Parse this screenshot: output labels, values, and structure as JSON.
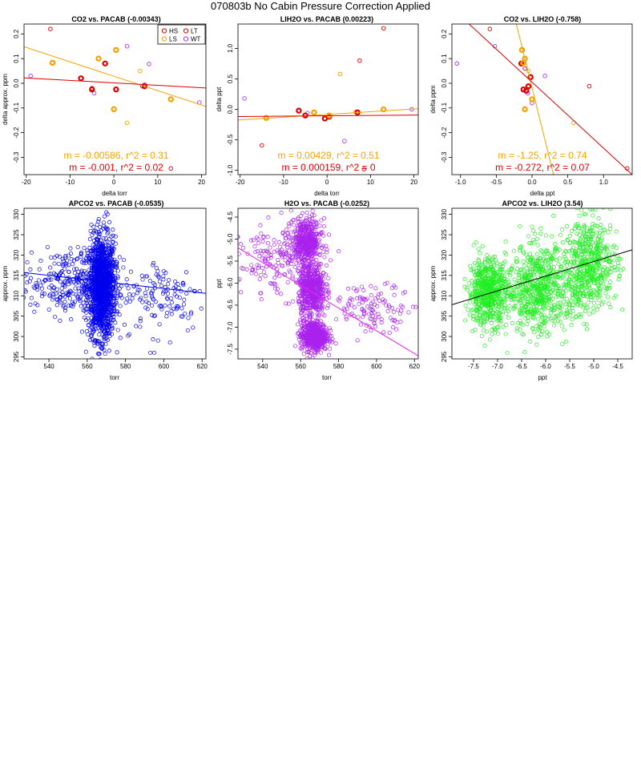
{
  "page_title": "070803b   No Cabin Pressure Correction Applied",
  "chart_data": [
    {
      "type": "scatter",
      "title": "CO2 vs. PACAB (-0.00343)",
      "xlabel": "delta torr",
      "ylabel": "delta approx. ppm",
      "xlim": [
        -20.5,
        21
      ],
      "ylim": [
        -0.37,
        0.24
      ],
      "xticks": [
        -20,
        -10,
        0,
        10,
        20
      ],
      "xtick_labels": [
        "-20",
        "-10",
        "0",
        "10",
        "20"
      ],
      "yticks": [
        -0.3,
        -0.2,
        -0.1,
        0.0,
        0.1,
        0.2
      ],
      "ytick_labels": [
        "-0.3",
        "-0.2",
        "-0.1",
        "0.0",
        "0.1",
        "0.2"
      ],
      "legend": {
        "position": "top-right",
        "items": [
          {
            "label": "HS",
            "color": "#dd0000"
          },
          {
            "label": "LT",
            "color": "#dd0000"
          },
          {
            "label": "LS",
            "color": "#f5a200"
          },
          {
            "label": "WT",
            "color": "#aa33ff"
          }
        ]
      },
      "series": [
        {
          "color": "#dd0000",
          "points": [
            [
              -14.5,
              0.22
            ],
            [
              -7.5,
              0.02
            ],
            [
              -5,
              -0.02
            ],
            [
              -2,
              0.08
            ],
            [
              0.5,
              -0.025
            ],
            [
              7,
              -0.012
            ],
            [
              6.5,
              -0.012
            ],
            [
              13,
              -0.345
            ]
          ]
        },
        {
          "color": "#f5a200",
          "points": [
            [
              -14,
              0.083
            ],
            [
              -3.5,
              0.1
            ],
            [
              0.5,
              0.135
            ],
            [
              0,
              -0.105
            ],
            [
              3,
              -0.16
            ],
            [
              13,
              -0.065
            ],
            [
              6,
              0.05
            ]
          ]
        },
        {
          "color": "#aa33ff",
          "points": [
            [
              -19,
              0.03
            ],
            [
              -4.5,
              -0.04
            ],
            [
              3,
              0.15
            ],
            [
              8,
              0.078
            ],
            [
              19.5,
              -0.078
            ],
            [
              7,
              -0.005
            ]
          ]
        }
      ],
      "thick_points": [
        [
          -7.5,
          0.02
        ],
        [
          -5,
          -0.025
        ],
        [
          -2,
          0.08
        ],
        [
          0.5,
          -0.025
        ],
        [
          7,
          -0.012
        ],
        [
          -14,
          0.083
        ],
        [
          -3.5,
          0.1
        ],
        [
          0.5,
          0.135
        ],
        [
          0,
          -0.105
        ],
        [
          13,
          -0.065
        ]
      ],
      "fit_lines": [
        {
          "color": "#f5a200",
          "x": [
            -20.5,
            21
          ],
          "y": [
            0.148,
            -0.094
          ]
        },
        {
          "color": "#dd0000",
          "x": [
            -20.5,
            21
          ],
          "y": [
            0.022,
            -0.019
          ]
        }
      ],
      "annotations": [
        {
          "text": "m = -0.00586, r^2 = 0.31",
          "color": "#f5a200"
        },
        {
          "text": "m = -0.001, r^2 = 0.02",
          "color": "#dd0000"
        }
      ]
    },
    {
      "type": "scatter",
      "title": "LIH2O vs. PACAB (0.00223)",
      "xlabel": "delta torr",
      "ylabel": "delta ppt",
      "xlim": [
        -20.5,
        21
      ],
      "ylim": [
        -1.07,
        1.4
      ],
      "xticks": [
        -20,
        -10,
        0,
        10,
        20
      ],
      "xtick_labels": [
        "-20",
        "-10",
        "0",
        "10",
        "20"
      ],
      "yticks": [
        -1.0,
        -0.5,
        0.0,
        0.5,
        1.0
      ],
      "ytick_labels": [
        "-1.0",
        "-0.5",
        "0.0",
        "0.5",
        "1.0"
      ],
      "series": [
        {
          "color": "#dd0000",
          "points": [
            [
              -15,
              -0.59
            ],
            [
              -6.5,
              -0.02
            ],
            [
              -5,
              -0.1
            ],
            [
              -0.5,
              -0.15
            ],
            [
              0.5,
              -0.12
            ],
            [
              7,
              -0.05
            ],
            [
              7.5,
              0.8
            ],
            [
              13,
              1.33
            ],
            [
              8.5,
              -0.98
            ]
          ]
        },
        {
          "color": "#f5a200",
          "points": [
            [
              -14,
              -0.14
            ],
            [
              -3,
              -0.05
            ],
            [
              0.5,
              -0.1
            ],
            [
              3,
              0.58
            ],
            [
              13,
              0.0
            ],
            [
              6.5,
              -0.04
            ]
          ]
        },
        {
          "color": "#aa33ff",
          "points": [
            [
              -19,
              0.18
            ],
            [
              -4.5,
              -0.06
            ],
            [
              4,
              -0.52
            ],
            [
              19.5,
              0.0
            ]
          ]
        }
      ],
      "thick_points": [
        [
          -6.5,
          -0.02
        ],
        [
          -5,
          -0.1
        ],
        [
          -0.5,
          -0.15
        ],
        [
          0.5,
          -0.12
        ],
        [
          7,
          -0.05
        ],
        [
          -14,
          -0.14
        ],
        [
          -3,
          -0.05
        ],
        [
          0.5,
          -0.1
        ],
        [
          13,
          0.0
        ]
      ],
      "fit_lines": [
        {
          "color": "#f5a200",
          "x": [
            -20.5,
            21
          ],
          "y": [
            -0.175,
            0.012
          ]
        },
        {
          "color": "#dd0000",
          "x": [
            -20.5,
            21
          ],
          "y": [
            -0.117,
            -0.093
          ]
        }
      ],
      "annotations": [
        {
          "text": "m = 0.00429, r^2 = 0.51",
          "color": "#f5a200"
        },
        {
          "text": "m = 0.000159, r^2 = 0",
          "color": "#dd0000"
        }
      ]
    },
    {
      "type": "scatter",
      "title": "CO2 vs. LIH2O (-0.758)",
      "xlabel": "delta ppt",
      "ylabel": "delta ppm",
      "xlim": [
        -1.12,
        1.4
      ],
      "ylim": [
        -0.37,
        0.24
      ],
      "xticks": [
        -1.0,
        -0.5,
        0.0,
        0.5,
        1.0
      ],
      "xtick_labels": [
        "-1.0",
        "-0.5",
        "0.0",
        "0.5",
        "1.0"
      ],
      "yticks": [
        -0.3,
        -0.2,
        -0.1,
        0.0,
        0.1,
        0.2
      ],
      "ytick_labels": [
        "-0.3",
        "-0.2",
        "-0.1",
        "0.0",
        "0.1",
        "0.2"
      ],
      "series": [
        {
          "color": "#dd0000",
          "points": [
            [
              -0.59,
              0.22
            ],
            [
              -0.15,
              0.08
            ],
            [
              -0.12,
              -0.025
            ],
            [
              -0.08,
              -0.03
            ],
            [
              -0.05,
              -0.012
            ],
            [
              -0.02,
              0.025
            ],
            [
              -0.1,
              0.06
            ],
            [
              0.8,
              -0.012
            ],
            [
              1.33,
              -0.345
            ]
          ]
        },
        {
          "color": "#f5a200",
          "points": [
            [
              -0.14,
              0.135
            ],
            [
              -0.1,
              0.1
            ],
            [
              -0.12,
              0.083
            ],
            [
              -0.05,
              0.05
            ],
            [
              0.0,
              -0.065
            ],
            [
              -0.1,
              -0.105
            ],
            [
              0.58,
              -0.16
            ]
          ]
        },
        {
          "color": "#aa33ff",
          "points": [
            [
              -1.05,
              0.08
            ],
            [
              -0.52,
              0.15
            ],
            [
              0.18,
              0.03
            ],
            [
              0.0,
              -0.08
            ],
            [
              -0.06,
              -0.04
            ]
          ]
        }
      ],
      "thick_points": [
        [
          -0.15,
          0.08
        ],
        [
          -0.12,
          -0.025
        ],
        [
          -0.08,
          -0.03
        ],
        [
          -0.05,
          -0.012
        ],
        [
          -0.02,
          0.025
        ],
        [
          -0.14,
          0.135
        ],
        [
          -0.1,
          0.1
        ],
        [
          -0.12,
          0.083
        ],
        [
          0.0,
          -0.065
        ],
        [
          -0.1,
          -0.105
        ]
      ],
      "fit_lines": [
        {
          "color": "#f5a200",
          "x": [
            -0.22,
            0.3
          ],
          "y": [
            0.24,
            -0.37
          ]
        },
        {
          "color": "#dd0000",
          "x": [
            -0.88,
            1.4
          ],
          "y": [
            0.24,
            -0.37
          ]
        }
      ],
      "annotations": [
        {
          "text": "m = -1.25, r^2 = 0.74",
          "color": "#f5a200"
        },
        {
          "text": "m = -0.272, r^2 = 0.07",
          "color": "#dd0000"
        }
      ]
    },
    {
      "type": "scatter",
      "title": "APCO2 vs. PACAB (-0.0535)",
      "xlabel": "torr",
      "ylabel": "approx. ppm",
      "xlim": [
        527,
        622
      ],
      "ylim": [
        294.5,
        331.5
      ],
      "xticks": [
        540,
        560,
        580,
        600,
        620
      ],
      "xtick_labels": [
        "540",
        "560",
        "580",
        "600",
        "620"
      ],
      "yticks": [
        295,
        300,
        305,
        310,
        315,
        320,
        325,
        330
      ],
      "ytick_labels": [
        "295",
        "300",
        "305",
        "310",
        "315",
        "320",
        "325",
        "330"
      ],
      "color": "#0000ee",
      "clusters": [
        {
          "n": 1400,
          "cx": 567.5,
          "sx": 3.6,
          "cy": 312,
          "sy": 6.2
        },
        {
          "n": 280,
          "cx": 550,
          "sx": 12,
          "cy": 313.5,
          "sy": 4
        },
        {
          "n": 130,
          "cx": 600,
          "sx": 11,
          "cy": 310,
          "sy": 4.5
        }
      ],
      "extra_points": [
        [
          593,
          296
        ],
        [
          595,
          296
        ],
        [
          597,
          299
        ],
        [
          570,
          330.5
        ],
        [
          569,
          329.5
        ]
      ],
      "fit_lines": [
        {
          "color": "#0000ee",
          "x": [
            527,
            622
          ],
          "y": [
            315.7,
            310.6
          ]
        }
      ]
    },
    {
      "type": "scatter",
      "title": "H2O vs. PACAB (-0.0252)",
      "xlabel": "torr",
      "ylabel": "ppt",
      "xlim": [
        527,
        622
      ],
      "ylim": [
        -7.72,
        -4.3
      ],
      "xticks": [
        540,
        560,
        580,
        600,
        620
      ],
      "xtick_labels": [
        "540",
        "560",
        "580",
        "600",
        "620"
      ],
      "yticks": [
        -7.5,
        -7.0,
        -6.5,
        -6.0,
        -5.5,
        -5.0,
        -4.5
      ],
      "ytick_labels": [
        "-7.5",
        "-7.0",
        "-6.5",
        "-6.0",
        "-5.5",
        "-5.0",
        "-4.5"
      ],
      "color": "#aa22ee",
      "clusters": [
        {
          "n": 600,
          "cx": 567,
          "sx": 3.5,
          "cy": -7.2,
          "sy": 0.17
        },
        {
          "n": 550,
          "cx": 566,
          "sx": 3.5,
          "cy": -6.15,
          "sy": 0.3
        },
        {
          "n": 450,
          "cx": 563,
          "sx": 4,
          "cy": -5.05,
          "sy": 0.25
        },
        {
          "n": 180,
          "cx": 548,
          "sx": 10,
          "cy": -5.5,
          "sy": 0.4
        },
        {
          "n": 120,
          "cx": 598,
          "sx": 11,
          "cy": -6.55,
          "sy": 0.25
        }
      ],
      "extra_points": [
        [
          555,
          -4.35
        ],
        [
          610,
          -6.1
        ],
        [
          590,
          -7.3
        ]
      ],
      "fit_lines": [
        {
          "color": "#ee22ee",
          "x": [
            527,
            622
          ],
          "y": [
            -5.2,
            -7.65
          ]
        }
      ]
    },
    {
      "type": "scatter",
      "title": "APCO2 vs. LIH2O (3.54)",
      "xlabel": "ppt",
      "ylabel": "approx. ppm",
      "xlim": [
        -7.95,
        -4.2
      ],
      "ylim": [
        294.5,
        331.5
      ],
      "xticks": [
        -7.5,
        -7.0,
        -6.5,
        -6.0,
        -5.5,
        -5.0,
        -4.5
      ],
      "xtick_labels": [
        "-7.5",
        "-7.0",
        "-6.5",
        "-6.0",
        "-5.5",
        "-5.0",
        "-4.5"
      ],
      "yticks": [
        295,
        300,
        305,
        310,
        315,
        320,
        325,
        330
      ],
      "ytick_labels": [
        "295",
        "300",
        "305",
        "310",
        "315",
        "320",
        "325",
        "330"
      ],
      "color": "#22ee22",
      "clusters": [
        {
          "n": 600,
          "cx": -7.2,
          "sx": 0.2,
          "cy": 311,
          "sy": 4
        },
        {
          "n": 550,
          "cx": -6.2,
          "sx": 0.3,
          "cy": 311.5,
          "sy": 5.5
        },
        {
          "n": 450,
          "cx": -5.05,
          "sx": 0.27,
          "cy": 318,
          "sy": 5.5
        },
        {
          "n": 180,
          "cx": -5.6,
          "sx": 0.35,
          "cy": 313,
          "sy": 5
        }
      ],
      "extra_points": [
        [
          -6.8,
          296
        ],
        [
          -5.2,
          330
        ],
        [
          -4.9,
          329
        ]
      ],
      "fit_lines": [
        {
          "color": "#000000",
          "x": [
            -7.95,
            -4.2
          ],
          "y": [
            307.8,
            321.3
          ]
        }
      ]
    }
  ]
}
